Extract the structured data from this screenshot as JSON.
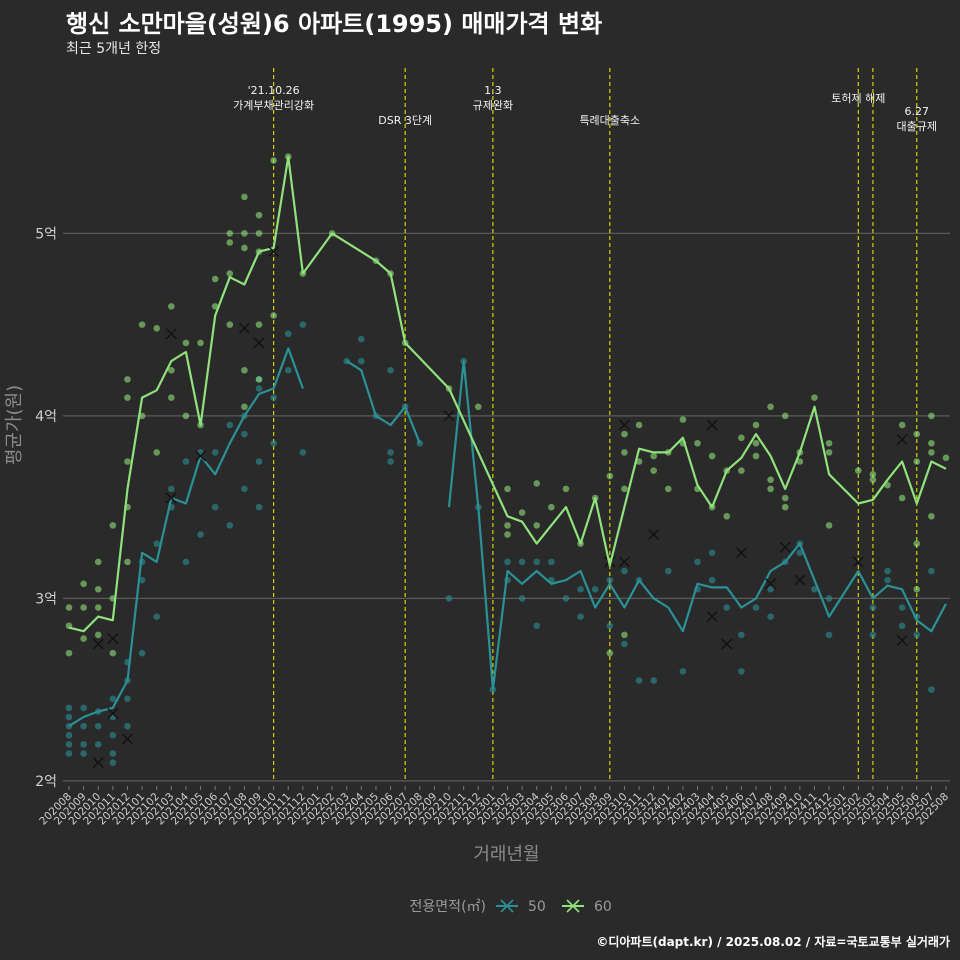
{
  "title": "행신 소만마을(성원)6 아파트(1995) 매매가격 변화",
  "subtitle": "최근 5개년 한정",
  "caption": "©디아파트(dapt.kr) / 2025.08.02 / 자료=국토교통부 실거래가",
  "colors": {
    "background": "#2b2a2a",
    "grid": "#5a5a5a",
    "vline": "#d4d400",
    "series_50": "#2a9196",
    "series_60": "#8fe27c"
  },
  "chart_data": {
    "type": "line",
    "xlabel": "거래년월",
    "ylabel": "평균가(원)",
    "ylim": [
      1.95,
      5.95
    ],
    "yticks": [
      {
        "value": 2,
        "label": "2억"
      },
      {
        "value": 3,
        "label": "3억"
      },
      {
        "value": 4,
        "label": "4억"
      },
      {
        "value": 5,
        "label": "5억"
      }
    ],
    "grid": true,
    "legend_title": "전용면적(㎡)",
    "legend_position": "bottom",
    "x": [
      "202008",
      "202009",
      "202010",
      "202011",
      "202012",
      "202101",
      "202102",
      "202103",
      "202104",
      "202105",
      "202106",
      "202107",
      "202108",
      "202109",
      "202110",
      "202111",
      "202112",
      "202201",
      "202202",
      "202203",
      "202204",
      "202205",
      "202206",
      "202207",
      "202208",
      "202209",
      "202210",
      "202211",
      "202212",
      "202301",
      "202302",
      "202303",
      "202304",
      "202305",
      "202306",
      "202307",
      "202308",
      "202309",
      "202310",
      "202311",
      "202312",
      "202401",
      "202402",
      "202403",
      "202404",
      "202405",
      "202406",
      "202407",
      "202408",
      "202409",
      "202410",
      "202411",
      "202412",
      "202501",
      "202502",
      "202503",
      "202504",
      "202505",
      "202506",
      "202507",
      "202508"
    ],
    "events": [
      {
        "x": "202110",
        "label": "'21.10.26\n가계부채관리강화",
        "level": 0
      },
      {
        "x": "202207",
        "label": "DSR 3단계",
        "level": 1
      },
      {
        "x": "202301",
        "label": "1.3\n규제완화",
        "level": 0
      },
      {
        "x": "202309",
        "label": "특례대출축소",
        "level": 1
      },
      {
        "x": "202502",
        "label": "토허제 해제",
        "level": 0
      },
      {
        "x": "202503",
        "label": "",
        "level": 0
      },
      {
        "x": "202506",
        "label": "6.27\n대출규제",
        "level": 2
      }
    ],
    "series": [
      {
        "name": "50",
        "color": "#2a9196",
        "values": [
          2.3,
          2.35,
          2.38,
          2.4,
          2.55,
          3.25,
          3.2,
          3.55,
          3.52,
          3.78,
          3.68,
          3.85,
          4.0,
          4.12,
          4.15,
          4.37,
          4.15,
          null,
          null,
          4.3,
          4.25,
          4.0,
          3.95,
          4.05,
          3.85,
          null,
          3.5,
          4.3,
          3.5,
          2.5,
          3.15,
          3.08,
          3.15,
          3.08,
          3.1,
          3.15,
          2.95,
          3.08,
          2.95,
          3.1,
          3.0,
          2.95,
          2.82,
          3.08,
          3.06,
          3.06,
          2.95,
          3.0,
          3.15,
          3.2,
          3.3,
          3.1,
          2.9,
          null,
          3.15,
          3.0,
          3.07,
          3.05,
          2.88,
          2.82,
          2.97
        ],
        "segments": [
          [
            0,
            16
          ],
          [
            19,
            24
          ],
          [
            26,
            60
          ]
        ],
        "crosses": [
          [
            2,
            2.1
          ],
          [
            3,
            2.37
          ],
          [
            4,
            2.23
          ],
          [
            7,
            3.55
          ],
          [
            9,
            3.78
          ],
          [
            26,
            4.0
          ],
          [
            37,
            3.2
          ],
          [
            38,
            3.2
          ],
          [
            40,
            3.35
          ],
          [
            44,
            2.9
          ],
          [
            45,
            2.75
          ],
          [
            46,
            3.25
          ],
          [
            48,
            3.08
          ],
          [
            49,
            3.28
          ],
          [
            50,
            3.1
          ],
          [
            54,
            3.2
          ],
          [
            57,
            2.77
          ]
        ],
        "points": [
          [
            0,
            2.35
          ],
          [
            0,
            2.3
          ],
          [
            0,
            2.25
          ],
          [
            0,
            2.2
          ],
          [
            0,
            2.15
          ],
          [
            0,
            2.4
          ],
          [
            1,
            2.4
          ],
          [
            1,
            2.3
          ],
          [
            1,
            2.2
          ],
          [
            1,
            2.15
          ],
          [
            2,
            2.38
          ],
          [
            2,
            2.3
          ],
          [
            2,
            2.2
          ],
          [
            3,
            2.45
          ],
          [
            3,
            2.35
          ],
          [
            3,
            2.25
          ],
          [
            3,
            2.15
          ],
          [
            3,
            2.1
          ],
          [
            4,
            2.65
          ],
          [
            4,
            2.55
          ],
          [
            4,
            2.45
          ],
          [
            4,
            2.3
          ],
          [
            5,
            3.1
          ],
          [
            5,
            3.2
          ],
          [
            5,
            2.7
          ],
          [
            6,
            3.3
          ],
          [
            6,
            2.9
          ],
          [
            7,
            3.6
          ],
          [
            7,
            3.5
          ],
          [
            8,
            3.2
          ],
          [
            8,
            3.75
          ],
          [
            9,
            3.8
          ],
          [
            9,
            3.35
          ],
          [
            10,
            3.5
          ],
          [
            10,
            3.8
          ],
          [
            11,
            3.4
          ],
          [
            11,
            3.95
          ],
          [
            12,
            4.0
          ],
          [
            12,
            3.6
          ],
          [
            12,
            3.9
          ],
          [
            13,
            4.2
          ],
          [
            13,
            4.15
          ],
          [
            13,
            3.75
          ],
          [
            13,
            3.5
          ],
          [
            14,
            4.1
          ],
          [
            14,
            3.85
          ],
          [
            15,
            4.45
          ],
          [
            15,
            4.25
          ],
          [
            16,
            4.5
          ],
          [
            16,
            3.8
          ],
          [
            19,
            4.3
          ],
          [
            20,
            4.42
          ],
          [
            20,
            4.3
          ],
          [
            21,
            4.0
          ],
          [
            22,
            3.75
          ],
          [
            22,
            3.8
          ],
          [
            22,
            4.25
          ],
          [
            23,
            4.05
          ],
          [
            24,
            3.85
          ],
          [
            26,
            3.0
          ],
          [
            27,
            4.3
          ],
          [
            28,
            3.5
          ],
          [
            29,
            2.5
          ],
          [
            30,
            3.2
          ],
          [
            30,
            3.1
          ],
          [
            31,
            3.2
          ],
          [
            31,
            3.0
          ],
          [
            32,
            3.2
          ],
          [
            32,
            2.85
          ],
          [
            33,
            3.1
          ],
          [
            33,
            3.2
          ],
          [
            34,
            3.0
          ],
          [
            35,
            3.05
          ],
          [
            35,
            2.9
          ],
          [
            36,
            3.05
          ],
          [
            37,
            3.1
          ],
          [
            37,
            2.85
          ],
          [
            38,
            2.75
          ],
          [
            38,
            3.15
          ],
          [
            39,
            3.1
          ],
          [
            39,
            2.55
          ],
          [
            40,
            2.55
          ],
          [
            41,
            3.15
          ],
          [
            42,
            2.6
          ],
          [
            43,
            3.2
          ],
          [
            43,
            3.05
          ],
          [
            44,
            3.25
          ],
          [
            44,
            3.1
          ],
          [
            45,
            2.95
          ],
          [
            46,
            2.6
          ],
          [
            46,
            2.8
          ],
          [
            47,
            2.95
          ],
          [
            48,
            2.9
          ],
          [
            48,
            3.05
          ],
          [
            49,
            3.2
          ],
          [
            50,
            3.25
          ],
          [
            50,
            3.3
          ],
          [
            51,
            3.05
          ],
          [
            52,
            3.0
          ],
          [
            52,
            2.8
          ],
          [
            55,
            2.95
          ],
          [
            55,
            2.8
          ],
          [
            56,
            3.15
          ],
          [
            56,
            3.1
          ],
          [
            57,
            2.95
          ],
          [
            57,
            2.85
          ],
          [
            58,
            2.9
          ],
          [
            58,
            2.8
          ],
          [
            59,
            3.15
          ],
          [
            59,
            2.5
          ]
        ]
      },
      {
        "name": "60",
        "color": "#8fe27c",
        "values": [
          2.84,
          2.82,
          2.9,
          2.88,
          3.6,
          4.1,
          4.14,
          4.3,
          4.35,
          3.95,
          4.55,
          4.76,
          4.72,
          4.9,
          4.92,
          5.42,
          4.78,
          null,
          5.0,
          null,
          null,
          4.85,
          4.78,
          4.4,
          null,
          null,
          4.15,
          null,
          null,
          null,
          3.45,
          3.42,
          3.3,
          null,
          3.5,
          3.3,
          3.55,
          3.18,
          3.5,
          3.82,
          3.8,
          3.8,
          3.88,
          3.62,
          3.5,
          3.7,
          3.77,
          3.9,
          3.78,
          3.6,
          3.8,
          4.05,
          3.68,
          null,
          3.52,
          3.54,
          3.65,
          3.75,
          3.52,
          3.75,
          3.71
        ],
        "segments": [
          [
            0,
            60
          ]
        ],
        "crosses": [
          [
            2,
            2.75
          ],
          [
            3,
            2.78
          ],
          [
            7,
            4.45
          ],
          [
            12,
            4.48
          ],
          [
            13,
            4.4
          ],
          [
            14,
            4.9
          ],
          [
            38,
            3.95
          ],
          [
            44,
            3.95
          ],
          [
            57,
            3.87
          ]
        ],
        "points": [
          [
            0,
            2.95
          ],
          [
            0,
            2.85
          ],
          [
            0,
            2.7
          ],
          [
            1,
            3.08
          ],
          [
            1,
            2.95
          ],
          [
            1,
            2.78
          ],
          [
            2,
            3.2
          ],
          [
            2,
            3.05
          ],
          [
            2,
            2.95
          ],
          [
            2,
            2.8
          ],
          [
            3,
            3.4
          ],
          [
            3,
            3.0
          ],
          [
            3,
            2.7
          ],
          [
            4,
            4.2
          ],
          [
            4,
            4.1
          ],
          [
            4,
            3.75
          ],
          [
            4,
            3.5
          ],
          [
            4,
            3.2
          ],
          [
            5,
            4.5
          ],
          [
            5,
            4.0
          ],
          [
            6,
            4.48
          ],
          [
            6,
            3.8
          ],
          [
            7,
            4.6
          ],
          [
            7,
            4.25
          ],
          [
            7,
            4.1
          ],
          [
            8,
            4.4
          ],
          [
            8,
            4.0
          ],
          [
            9,
            3.95
          ],
          [
            9,
            4.4
          ],
          [
            10,
            4.75
          ],
          [
            10,
            4.6
          ],
          [
            11,
            5.0
          ],
          [
            11,
            4.95
          ],
          [
            11,
            4.78
          ],
          [
            11,
            4.5
          ],
          [
            12,
            5.2
          ],
          [
            12,
            5.0
          ],
          [
            12,
            4.92
          ],
          [
            12,
            4.25
          ],
          [
            12,
            4.05
          ],
          [
            13,
            5.1
          ],
          [
            13,
            5.0
          ],
          [
            13,
            4.9
          ],
          [
            13,
            4.5
          ],
          [
            13,
            4.2
          ],
          [
            14,
            5.4
          ],
          [
            14,
            4.55
          ],
          [
            15,
            5.42
          ],
          [
            16,
            4.78
          ],
          [
            18,
            5.0
          ],
          [
            21,
            4.85
          ],
          [
            22,
            4.78
          ],
          [
            23,
            4.4
          ],
          [
            26,
            4.15
          ],
          [
            28,
            4.05
          ],
          [
            30,
            3.6
          ],
          [
            30,
            3.4
          ],
          [
            30,
            3.35
          ],
          [
            31,
            3.47
          ],
          [
            32,
            3.63
          ],
          [
            32,
            3.4
          ],
          [
            33,
            3.5
          ],
          [
            34,
            3.6
          ],
          [
            35,
            3.3
          ],
          [
            36,
            3.55
          ],
          [
            37,
            3.67
          ],
          [
            37,
            2.7
          ],
          [
            38,
            3.9
          ],
          [
            38,
            3.8
          ],
          [
            38,
            3.6
          ],
          [
            38,
            2.8
          ],
          [
            39,
            3.95
          ],
          [
            39,
            3.75
          ],
          [
            40,
            3.78
          ],
          [
            40,
            3.7
          ],
          [
            41,
            3.8
          ],
          [
            41,
            3.6
          ],
          [
            42,
            3.98
          ],
          [
            42,
            3.85
          ],
          [
            43,
            3.85
          ],
          [
            43,
            3.6
          ],
          [
            44,
            3.78
          ],
          [
            44,
            3.5
          ],
          [
            45,
            3.7
          ],
          [
            45,
            3.45
          ],
          [
            46,
            3.88
          ],
          [
            46,
            3.7
          ],
          [
            47,
            3.95
          ],
          [
            47,
            3.85
          ],
          [
            47,
            3.78
          ],
          [
            48,
            4.05
          ],
          [
            48,
            3.65
          ],
          [
            48,
            3.6
          ],
          [
            49,
            4.0
          ],
          [
            49,
            3.55
          ],
          [
            49,
            3.5
          ],
          [
            50,
            3.8
          ],
          [
            50,
            3.75
          ],
          [
            51,
            4.1
          ],
          [
            52,
            3.85
          ],
          [
            52,
            3.8
          ],
          [
            52,
            3.4
          ],
          [
            54,
            3.7
          ],
          [
            55,
            3.68
          ],
          [
            55,
            3.65
          ],
          [
            56,
            3.62
          ],
          [
            57,
            3.95
          ],
          [
            57,
            3.55
          ],
          [
            58,
            3.9
          ],
          [
            58,
            3.75
          ],
          [
            58,
            3.3
          ],
          [
            58,
            3.05
          ],
          [
            59,
            4.0
          ],
          [
            59,
            3.85
          ],
          [
            59,
            3.8
          ],
          [
            59,
            3.45
          ],
          [
            60,
            3.77
          ]
        ]
      }
    ]
  }
}
